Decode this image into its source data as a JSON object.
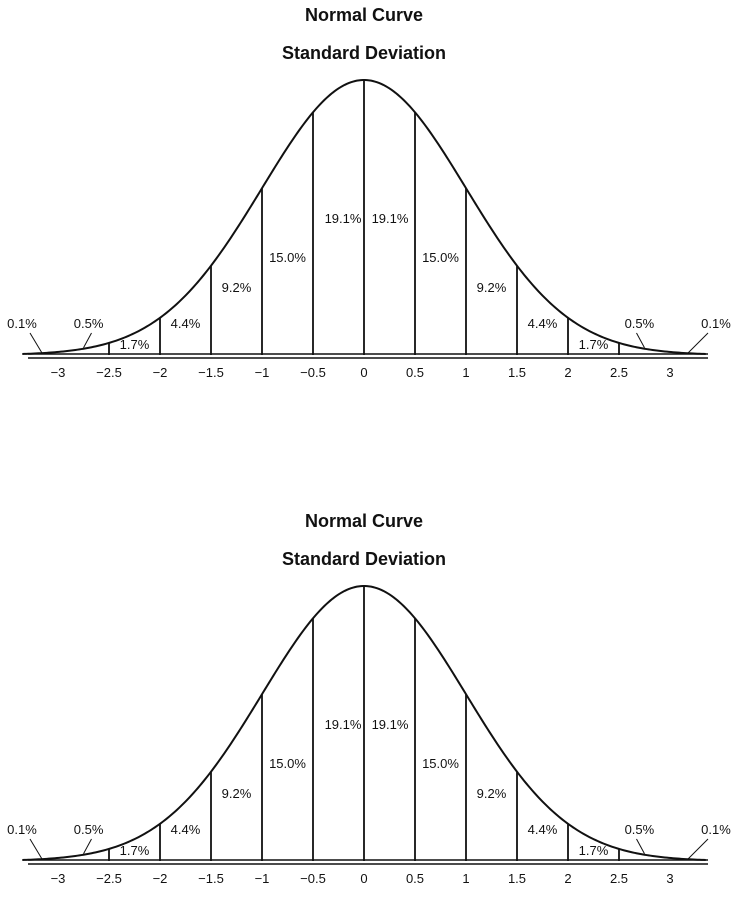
{
  "chart_data": [
    {
      "type": "normal-curve",
      "title": "Normal Curve",
      "subtitle": "Standard Deviation",
      "x_ticks": [
        "−3",
        "−2.5",
        "−2",
        "−1.5",
        "−1",
        "−0.5",
        "0",
        "0.5",
        "1",
        "1.5",
        "2",
        "2.5",
        "3"
      ],
      "x_values": [
        -3,
        -2.5,
        -2,
        -1.5,
        -1,
        -0.5,
        0,
        0.5,
        1,
        1.5,
        2,
        2.5,
        3
      ],
      "segments": [
        {
          "from": -3,
          "to": -2.5,
          "label": "0.5%"
        },
        {
          "from": -2.5,
          "to": -2,
          "label": "1.7%"
        },
        {
          "from": -2,
          "to": -1.5,
          "label": "4.4%"
        },
        {
          "from": -1.5,
          "to": -1,
          "label": "9.2%"
        },
        {
          "from": -1,
          "to": -0.5,
          "label": "15.0%"
        },
        {
          "from": -0.5,
          "to": 0,
          "label": "19.1%"
        },
        {
          "from": 0,
          "to": 0.5,
          "label": "19.1%"
        },
        {
          "from": 0.5,
          "to": 1,
          "label": "15.0%"
        },
        {
          "from": 1,
          "to": 1.5,
          "label": "9.2%"
        },
        {
          "from": 1.5,
          "to": 2,
          "label": "4.4%"
        },
        {
          "from": 2,
          "to": 2.5,
          "label": "1.7%"
        },
        {
          "from": 2.5,
          "to": 3,
          "label": "0.5%"
        }
      ],
      "tails": [
        {
          "side": "left",
          "label": "0.1%"
        },
        {
          "side": "right",
          "label": "0.1%"
        }
      ]
    },
    {
      "type": "normal-curve",
      "title": "Normal Curve",
      "subtitle": "Standard Deviation",
      "x_ticks": [
        "−3",
        "−2.5",
        "−2",
        "−1.5",
        "−1",
        "−0.5",
        "0",
        "0.5",
        "1",
        "1.5",
        "2",
        "2.5",
        "3"
      ],
      "x_values": [
        -3,
        -2.5,
        -2,
        -1.5,
        -1,
        -0.5,
        0,
        0.5,
        1,
        1.5,
        2,
        2.5,
        3
      ],
      "segments": [
        {
          "from": -3,
          "to": -2.5,
          "label": "0.5%"
        },
        {
          "from": -2.5,
          "to": -2,
          "label": "1.7%"
        },
        {
          "from": -2,
          "to": -1.5,
          "label": "4.4%"
        },
        {
          "from": -1.5,
          "to": -1,
          "label": "9.2%"
        },
        {
          "from": -1,
          "to": -0.5,
          "label": "15.0%"
        },
        {
          "from": -0.5,
          "to": 0,
          "label": "19.1%"
        },
        {
          "from": 0,
          "to": 0.5,
          "label": "19.1%"
        },
        {
          "from": 0.5,
          "to": 1,
          "label": "15.0%"
        },
        {
          "from": 1,
          "to": 1.5,
          "label": "9.2%"
        },
        {
          "from": 1.5,
          "to": 2,
          "label": "4.4%"
        },
        {
          "from": 2,
          "to": 2.5,
          "label": "1.7%"
        },
        {
          "from": 2.5,
          "to": 3,
          "label": "0.5%"
        }
      ],
      "tails": [
        {
          "side": "left",
          "label": "0.1%"
        },
        {
          "side": "right",
          "label": "0.1%"
        }
      ]
    }
  ]
}
